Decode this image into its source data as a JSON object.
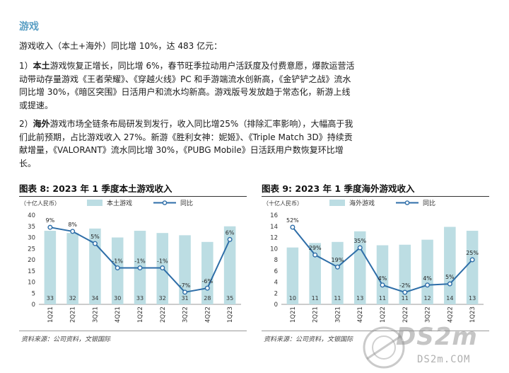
{
  "section_title": "游戏",
  "paragraphs": {
    "p0": "游戏收入（本土+海外）同比增 10%，达 483 亿元：",
    "p1_prefix": "1）",
    "p1_bold": "本土",
    "p1_rest": "游戏恢复正增长，同比增 6%，春节旺季拉动用户活跃度及付费意愿，爆款运营活动带动存量游戏《王者荣耀》、《穿越火线》PC 和手游端流水创新高，《金铲铲之战》流水同比增 30%，《暗区突围》日活用户和流水均新高。游戏版号发放趋于常态化，新游上线或提速。",
    "p2_prefix": "2）",
    "p2_bold": "海外",
    "p2_rest": "游戏市场全链条布局研发到发行，收入同比增25%（排除汇率影响），大幅高于我们此前预期，占比游戏收入 27%。新游《胜利女神：妮姬》、《Triple Match 3D》持续贡献增量，《VALORANT》流水同比增 30%，《PUBG Mobile》日活跃用户数恢复环比增长。"
  },
  "fig1_title": "图表 8: 2023 年 1 季度本土游戏收入",
  "fig2_title": "图表 9: 2023 年 1 季度海外游戏收入",
  "source1": "资料来源：公司资料，文银国际",
  "source2": "资料来源：公司资料，文银国际",
  "watermark_big": "DS2m",
  "watermark_small": "DS2m.COM",
  "colors": {
    "bar": "#bcdde3",
    "line": "#2e6ea8",
    "title": "#5a9fc4"
  },
  "chart_data": [
    {
      "type": "bar",
      "unit_label": "（十亿人民币）",
      "categories": [
        "1Q21",
        "2Q21",
        "3Q21",
        "4Q21",
        "1Q22",
        "2Q22",
        "3Q22",
        "4Q22",
        "1Q23"
      ],
      "series": [
        {
          "name": "本土游戏",
          "type": "bar",
          "values": [
            33,
            32,
            34,
            30,
            33,
            32,
            31,
            28,
            35
          ],
          "labels": [
            "33",
            "32",
            "34",
            "30",
            "33",
            "32",
            "31",
            "28",
            "35"
          ]
        },
        {
          "name": "同比",
          "type": "line",
          "axis": "right",
          "values": [
            9,
            8,
            5,
            -1,
            -1,
            -1,
            -7,
            -6,
            6
          ],
          "labels": [
            "9%",
            "8%",
            "5%",
            "-1%",
            "-1%",
            "-1%",
            "-7%",
            "-6%",
            "6%"
          ]
        }
      ],
      "ylim": [
        0,
        40
      ],
      "yticks": [
        0,
        5,
        10,
        15,
        20,
        25,
        30,
        35,
        40
      ],
      "y2lim": [
        -10,
        12
      ]
    },
    {
      "type": "bar",
      "unit_label": "（十亿人民币）",
      "categories": [
        "1Q21",
        "2Q21",
        "3Q21",
        "4Q21",
        "1Q22",
        "2Q22",
        "3Q22",
        "4Q22",
        "1Q23"
      ],
      "series": [
        {
          "name": "海外游戏",
          "type": "bar",
          "values": [
            10.2,
            11,
            11.2,
            13.1,
            10.6,
            10.7,
            11.6,
            13.9,
            13.2
          ],
          "labels": [
            "10",
            "11",
            "11",
            "13",
            "11",
            "11",
            "12",
            "14",
            "13"
          ]
        },
        {
          "name": "同比",
          "type": "line",
          "axis": "right",
          "values": [
            52,
            29,
            19,
            35,
            4,
            -2,
            4,
            5,
            25
          ],
          "labels": [
            "52%",
            "29%",
            "19%",
            "35%",
            "4%",
            "-2%",
            "4%",
            "5%",
            "25%"
          ]
        }
      ],
      "ylim": [
        0,
        16
      ],
      "yticks": [
        0,
        2,
        4,
        6,
        8,
        10,
        12,
        14,
        16
      ],
      "y2lim": [
        -12,
        62
      ]
    }
  ]
}
